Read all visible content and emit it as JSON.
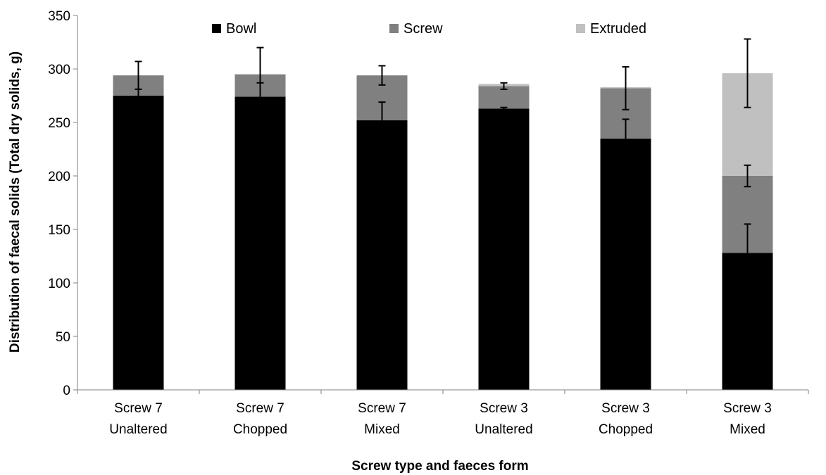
{
  "chart_data": {
    "type": "bar",
    "stacked": true,
    "title": "",
    "xlabel": "Screw type and faeces form",
    "ylabel": "Distribution of faecal solids (Total dry solids, g)",
    "ylim": [
      0,
      350
    ],
    "yticks": [
      0,
      50,
      100,
      150,
      200,
      250,
      300,
      350
    ],
    "grid": false,
    "legend_position": "top",
    "categories": [
      [
        "Screw 7",
        "Unaltered"
      ],
      [
        "Screw 7",
        "Chopped"
      ],
      [
        "Screw 7",
        "Mixed"
      ],
      [
        "Screw 3",
        "Unaltered"
      ],
      [
        "Screw 3",
        "Chopped"
      ],
      [
        "Screw 3",
        "Mixed"
      ]
    ],
    "series": [
      {
        "name": "Bowl",
        "color": "#000000",
        "values": [
          275,
          274,
          252,
          263,
          235,
          128
        ],
        "error": [
          6,
          13,
          17,
          1,
          18,
          27
        ]
      },
      {
        "name": "Screw",
        "color": "#808080",
        "values": [
          19,
          21,
          42,
          21,
          47,
          72
        ],
        "error": [
          13,
          25,
          9,
          3,
          20,
          10
        ]
      },
      {
        "name": "Extruded",
        "color": "#c0c0c0",
        "values": [
          0,
          0,
          0,
          2,
          1,
          96
        ],
        "error": [
          0,
          0,
          0,
          0,
          0,
          32
        ]
      }
    ]
  }
}
